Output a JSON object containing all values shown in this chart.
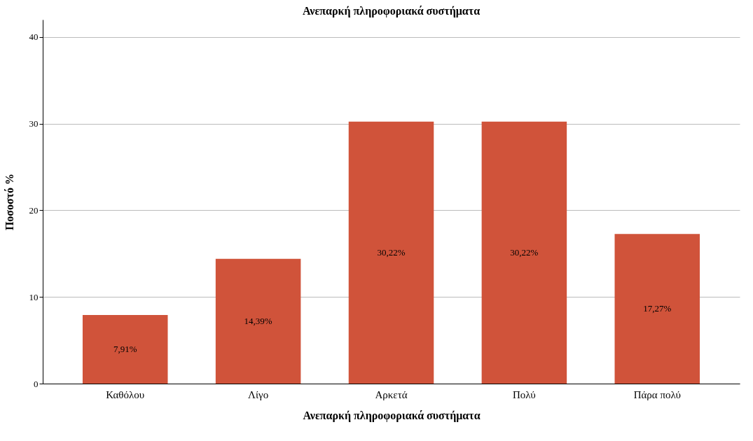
{
  "chart_data": {
    "type": "bar",
    "title": "Ανεπαρκή πληροφοριακά συστήματα",
    "xlabel": "Ανεπαρκή πληροφοριακά συστήματα",
    "ylabel": "Ποσοστό %",
    "categories": [
      "Καθόλου",
      "Λίγο",
      "Αρκετά",
      "Πολύ",
      "Πάρα πολύ"
    ],
    "values": [
      7.91,
      14.39,
      30.22,
      30.22,
      17.27
    ],
    "value_labels": [
      "7,91%",
      "14,39%",
      "30,22%",
      "30,22%",
      "17,27%"
    ],
    "color": "#d0533a",
    "ylim": [
      0,
      42
    ],
    "yticks": [
      0,
      10,
      20,
      30,
      40
    ],
    "grid": "y"
  }
}
